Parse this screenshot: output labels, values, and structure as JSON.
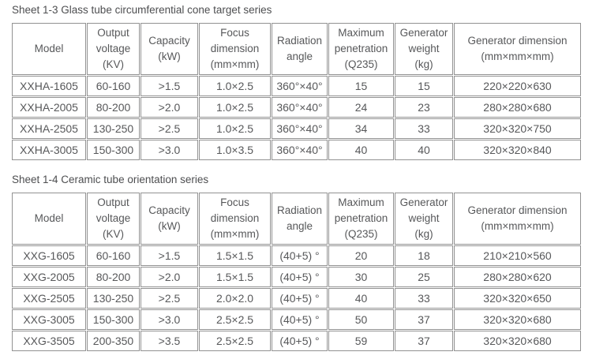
{
  "page": {
    "background": "#ffffff",
    "text_color": "#57585a",
    "border_color": "#929292"
  },
  "column_keys": [
    "model",
    "output-voltage",
    "capacity",
    "focus-dimension",
    "radiation-angle",
    "maximum-penetration",
    "generator-weight",
    "generator-dimension"
  ],
  "tables": [
    {
      "title": "Sheet 1-3 Glass tube circumferential cone target series",
      "headers": [
        "Model",
        "Output\nvoltage\n(KV)",
        "Capacity\n(kW)",
        "Focus\ndimension\n(mm×mm)",
        "Radiation\nangle",
        "Maximum\npenetration\n(Q235)",
        "Generator\nweight\n(kg)",
        "Generator dimension\n(mm×mm×mm)"
      ],
      "rows": [
        [
          "XXHA-1605",
          "60-160",
          ">1.5",
          "1.0×2.5",
          "360°×40°",
          "15",
          "15",
          "220×220×630"
        ],
        [
          "XXHA-2005",
          "80-200",
          ">2.0",
          "1.0×2.5",
          "360°×40°",
          "24",
          "23",
          "280×280×680"
        ],
        [
          "XXHA-2505",
          "130-250",
          ">2.5",
          "1.0×2.5",
          "360°×40°",
          "34",
          "33",
          "320×320×750"
        ],
        [
          "XXHA-3005",
          "150-300",
          ">3.0",
          "1.0×3.5",
          "360°×40°",
          "40",
          "40",
          "320×320×840"
        ]
      ]
    },
    {
      "title": "Sheet 1-4 Ceramic tube orientation series",
      "headers": [
        "Model",
        "Output\nvoltage\n(KV)",
        "Capacity\n(kW)",
        "Focus\ndimension\n(mm×mm)",
        "Radiation\nangle",
        "Maximum\npenetration\n(Q235)",
        "Generator\nweight\n(kg)",
        "Generator dimension\n(mm×mm×mm)"
      ],
      "rows": [
        [
          "XXG-1605",
          "60-160",
          ">1.5",
          "1.5×1.5",
          "(40+5) °",
          "20",
          "18",
          "210×210×560"
        ],
        [
          "XXG-2005",
          "80-200",
          ">2.0",
          "1.5×1.5",
          "(40+5) °",
          "30",
          "25",
          "280×280×620"
        ],
        [
          "XXG-2505",
          "130-250",
          ">2.5",
          "2.0×2.0",
          "(40+5) °",
          "40",
          "33",
          "320×320×650"
        ],
        [
          "XXG-3005",
          "150-300",
          ">3.0",
          "2.5×2.5",
          "(40+5) °",
          "50",
          "37",
          "320×320×680"
        ],
        [
          "XXG-3505",
          "200-350",
          ">3.5",
          "2.5×2.5",
          "(40+5) °",
          "59",
          "37",
          "320×320×680"
        ]
      ]
    }
  ]
}
